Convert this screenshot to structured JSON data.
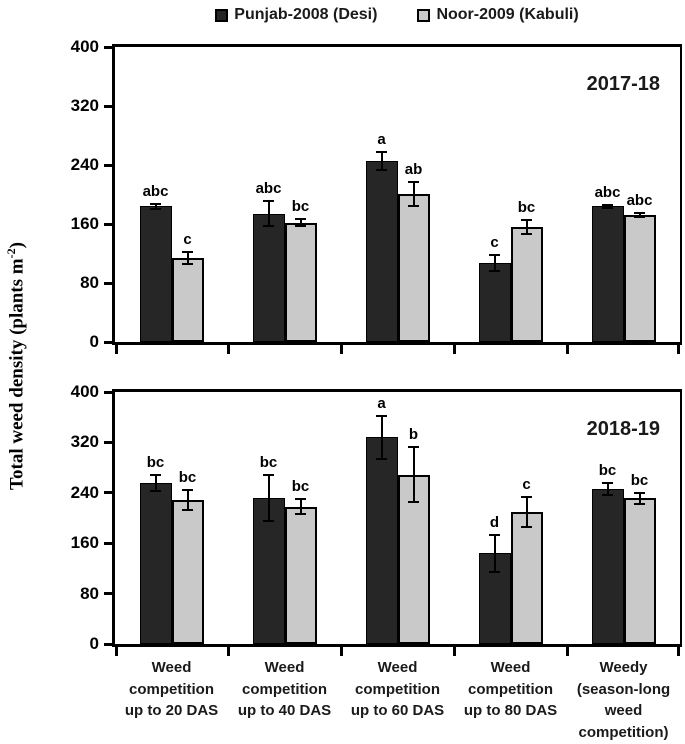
{
  "chart_data": {
    "type": "bar",
    "title": "",
    "ylabel": {
      "prefix": "Total weed density (plants m",
      "sup": "-2",
      "suffix": ")"
    },
    "legend_position": "top",
    "grid": false,
    "legend": [
      {
        "name": "Punjab-2008 (Desi)",
        "color": "#262626"
      },
      {
        "name": "Noor-2009 (Kabuli)",
        "color": "#c9c9c9"
      }
    ],
    "categories": [
      [
        "Weed",
        "competition",
        "up to 20 DAS"
      ],
      [
        "Weed",
        "competition",
        "up to 40 DAS"
      ],
      [
        "Weed",
        "competition",
        "up to 60 DAS"
      ],
      [
        "Weed",
        "competition",
        "up to 80 DAS"
      ],
      [
        "Weedy",
        "(season-long",
        "weed",
        "competition)"
      ]
    ],
    "ylim": [
      0,
      400
    ],
    "yticks": [
      0,
      80,
      160,
      240,
      320,
      400
    ],
    "panels": [
      {
        "title": "2017-18",
        "series": [
          {
            "name": "Punjab-2008 (Desi)",
            "values": [
              184,
              174,
              245,
              107,
              184
            ],
            "errors": [
              3,
              17,
              12,
              11,
              2
            ],
            "sig_labels": [
              "abc",
              "abc",
              "a",
              "c",
              "abc"
            ]
          },
          {
            "name": "Noor-2009 (Kabuli)",
            "values": [
              114,
              162,
              201,
              156,
              172
            ],
            "errors": [
              8,
              5,
              16,
              10,
              3
            ],
            "sig_labels": [
              "c",
              "bc",
              "ab",
              "bc",
              "abc"
            ]
          }
        ]
      },
      {
        "title": "2018-19",
        "series": [
          {
            "name": "Punjab-2008 (Desi)",
            "values": [
              256,
              232,
              328,
              144,
              246
            ],
            "errors": [
              13,
              37,
              34,
              29,
              9
            ],
            "sig_labels": [
              "bc",
              "bc",
              "a",
              "d",
              "bc"
            ]
          },
          {
            "name": "Noor-2009 (Kabuli)",
            "values": [
              229,
              218,
              269,
              209,
              231
            ],
            "errors": [
              16,
              12,
              43,
              24,
              8
            ],
            "sig_labels": [
              "bc",
              "bc",
              "b",
              "c",
              "bc"
            ]
          }
        ]
      }
    ]
  }
}
